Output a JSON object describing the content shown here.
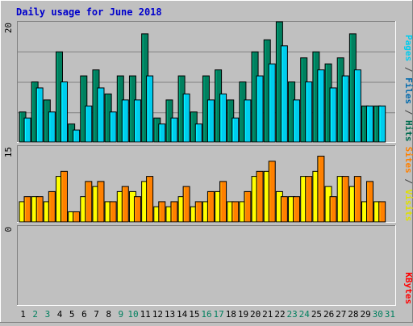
{
  "chart_data": {
    "type": "bar",
    "title": "Daily usage for June 2018",
    "categories": [
      "1",
      "2",
      "3",
      "4",
      "5",
      "6",
      "7",
      "8",
      "9",
      "10",
      "11",
      "12",
      "13",
      "14",
      "15",
      "16",
      "17",
      "18",
      "19",
      "20",
      "21",
      "22",
      "23",
      "24",
      "25",
      "26",
      "27",
      "28",
      "29",
      "30",
      "31"
    ],
    "weekend_days": [
      "2",
      "3",
      "9",
      "10",
      "16",
      "17",
      "23",
      "24",
      "30",
      "31"
    ],
    "panels": [
      {
        "name": "top",
        "y_max_label": "20",
        "y_max": 20,
        "right_labels": [
          {
            "text": "Hits",
            "color": "#006b4f"
          },
          {
            "text": " / ",
            "color": "#404040"
          },
          {
            "text": "Files",
            "color": "#0069ad"
          },
          {
            "text": " / ",
            "color": "#404040"
          },
          {
            "text": "Pages",
            "color": "#00ccee"
          }
        ],
        "series": [
          {
            "name": "Hits",
            "color": "#00805f",
            "values": [
              5,
              10,
              7,
              15,
              3,
              11,
              12,
              8,
              11,
              11,
              18,
              4,
              7,
              11,
              5,
              11,
              12,
              7,
              10,
              15,
              17,
              20,
              10,
              14,
              15,
              13,
              14,
              18,
              6,
              6,
              0
            ]
          },
          {
            "name": "Files",
            "color": "#00ccee",
            "values": [
              4,
              9,
              5,
              10,
              2,
              6,
              9,
              5,
              7,
              7,
              11,
              3,
              4,
              8,
              3,
              7,
              8,
              4,
              7,
              11,
              13,
              16,
              7,
              10,
              12,
              9,
              11,
              12,
              6,
              6,
              0
            ]
          }
        ]
      },
      {
        "name": "middle",
        "y_max_label": "15",
        "y_max": 15,
        "right_labels": [
          {
            "text": "Visits",
            "color": "#e0e000"
          },
          {
            "text": " / ",
            "color": "#404040"
          },
          {
            "text": "Sites",
            "color": "#ff8000"
          }
        ],
        "series": [
          {
            "name": "Visits",
            "color": "#ffff00",
            "values": [
              4,
              5,
              4,
              9,
              2,
              5,
              7,
              4,
              6,
              6,
              8,
              3,
              3,
              5,
              3,
              4,
              6,
              4,
              4,
              9,
              10,
              6,
              5,
              9,
              10,
              7,
              9,
              7,
              4,
              4,
              0
            ]
          },
          {
            "name": "Sites",
            "color": "#ff8000",
            "values": [
              5,
              5,
              6,
              10,
              2,
              8,
              8,
              4,
              7,
              5,
              9,
              4,
              4,
              7,
              4,
              6,
              8,
              4,
              6,
              10,
              12,
              5,
              5,
              9,
              13,
              5,
              9,
              9,
              8,
              4,
              0
            ]
          }
        ]
      },
      {
        "name": "bottom",
        "y_max_label": "0",
        "y_max": 0,
        "right_labels": [
          {
            "text": "KBytes",
            "color": "#ff0000"
          }
        ],
        "series": [
          {
            "name": "KBytes",
            "color": "#ff0000",
            "values": []
          }
        ]
      }
    ]
  }
}
